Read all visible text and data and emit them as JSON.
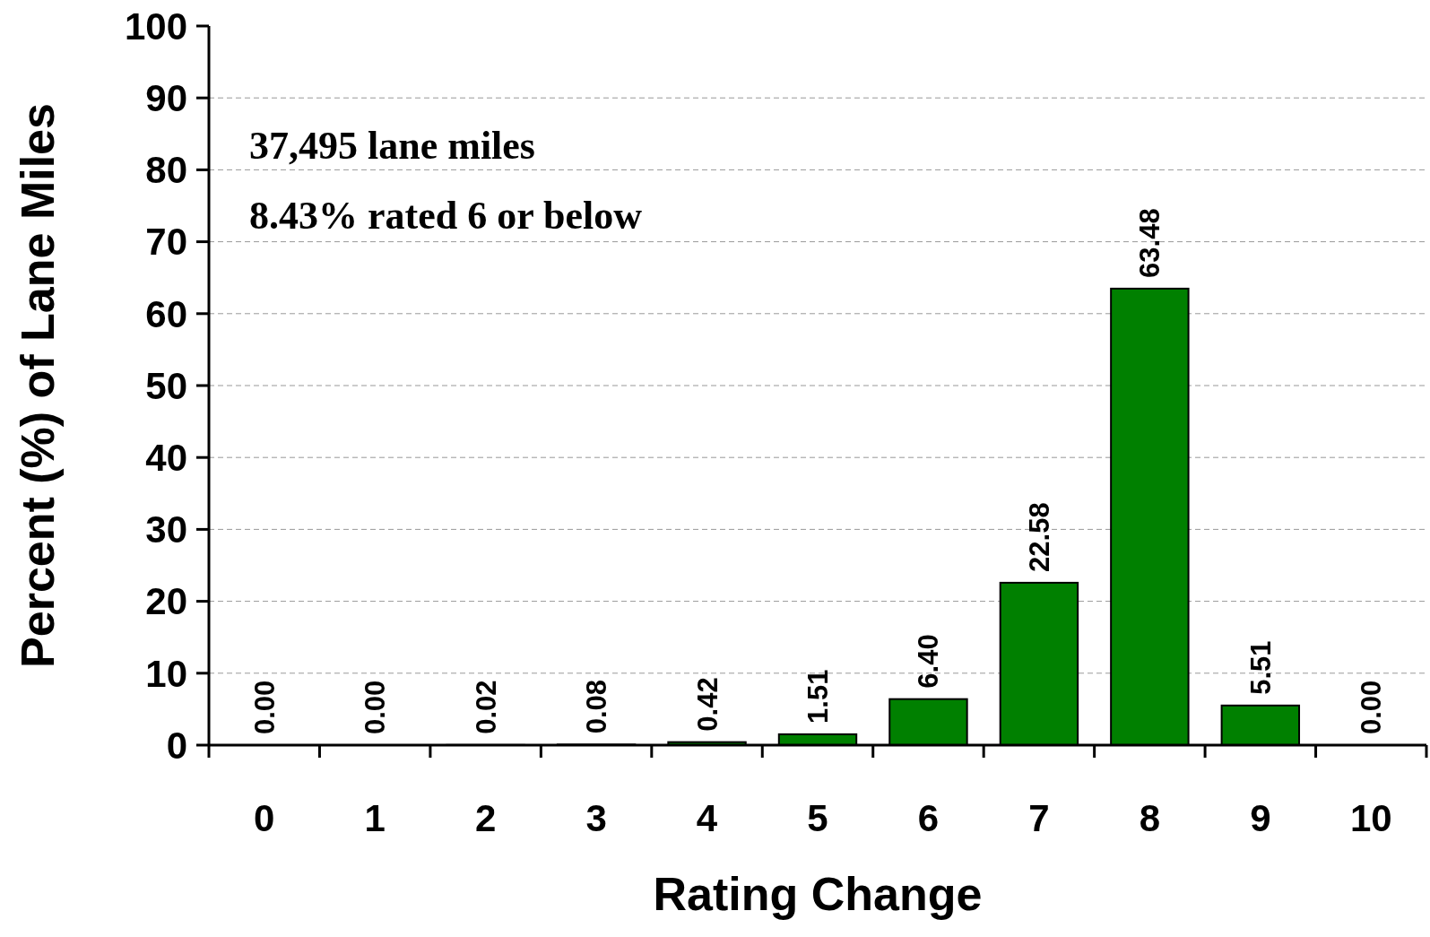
{
  "chart_data": {
    "type": "bar",
    "xlabel": "Rating Change",
    "ylabel": "Percent (%) of Lane Miles",
    "categories": [
      "0",
      "1",
      "2",
      "3",
      "4",
      "5",
      "6",
      "7",
      "8",
      "9",
      "10"
    ],
    "values": [
      0,
      0,
      0.02,
      0.08,
      0.42,
      1.51,
      6.4,
      22.58,
      63.48,
      5.51,
      0
    ],
    "value_labels": [
      "0.00",
      "0.00",
      "0.02",
      "0.08",
      "0.42",
      "1.51",
      "6.40",
      "22.58",
      "63.48",
      "5.51",
      "0.00"
    ],
    "color": "#008000",
    "ylim": [
      0,
      100
    ],
    "yticks": [
      0,
      10,
      20,
      30,
      40,
      50,
      60,
      70,
      80,
      90,
      100
    ],
    "grid": "y",
    "annotations": [
      "37,495 lane miles",
      "8.43% rated 6 or below"
    ]
  }
}
